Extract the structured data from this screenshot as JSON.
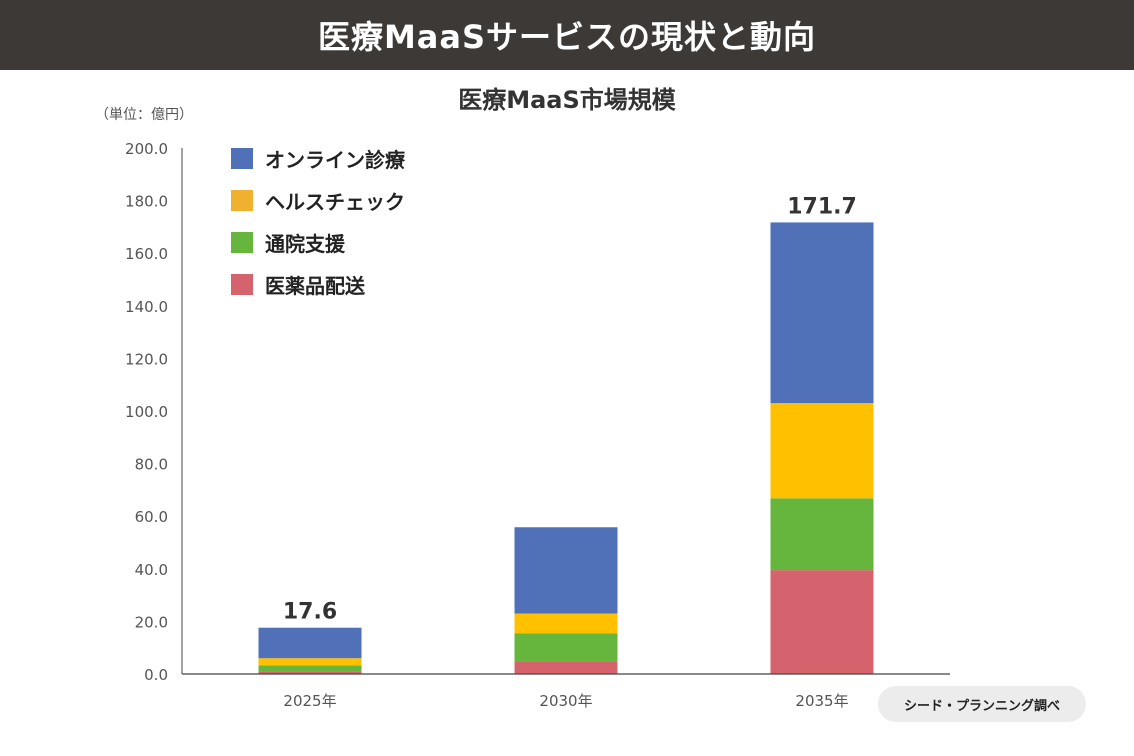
{
  "header": {
    "title": "医療MaaSサービスの現状と動向"
  },
  "source": "シード・プランニング調べ",
  "chart_data": {
    "type": "bar",
    "stacked": true,
    "title": "医療MaaS市場規模",
    "ylabel": "（単位：億円）",
    "xlabel": "",
    "ylim": [
      0,
      200
    ],
    "yticks": [
      "0.0",
      "20.0",
      "40.0",
      "60.0",
      "80.0",
      "100.0",
      "120.0",
      "140.0",
      "160.0",
      "180.0",
      "200.0"
    ],
    "categories": [
      "2025年",
      "2030年",
      "2035年"
    ],
    "series": [
      {
        "name": "医薬品配送",
        "color": "#d4636e",
        "values": [
          1.0,
          4.8,
          39.5
        ]
      },
      {
        "name": "通院支援",
        "color": "#66b63e",
        "values": [
          2.3,
          10.7,
          27.3
        ]
      },
      {
        "name": "ヘルスチェック",
        "color": "#ffc000",
        "values": [
          2.7,
          7.5,
          36.2
        ]
      },
      {
        "name": "オンライン診療",
        "color": "#5070b8",
        "values": [
          11.6,
          32.8,
          68.7
        ]
      }
    ],
    "totals": [
      "17.6",
      "",
      "171.7"
    ],
    "legend": {
      "position": "top-left",
      "order": [
        "オンライン診療",
        "ヘルスチェック",
        "通院支援",
        "医薬品配送"
      ],
      "colors": [
        "#5070b8",
        "#f0b030",
        "#66b63e",
        "#d4636e"
      ]
    }
  }
}
